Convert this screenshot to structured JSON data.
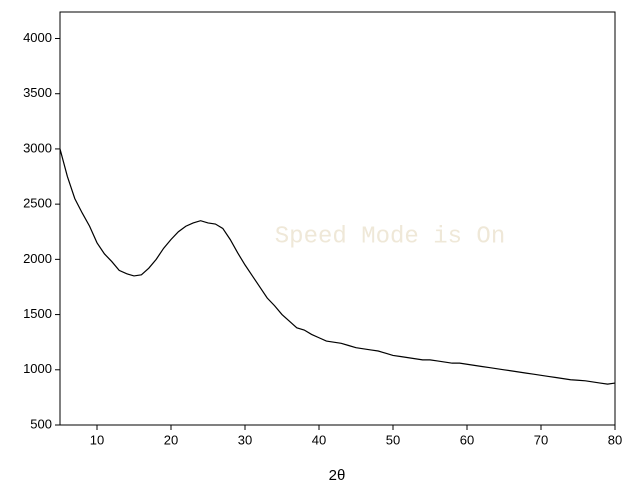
{
  "chart_data": {
    "type": "line",
    "x_label": "2θ",
    "annotation": "Speed Mode is On",
    "x": [
      5,
      6,
      7,
      8,
      9,
      10,
      11,
      12,
      13,
      14,
      15,
      16,
      17,
      18,
      19,
      20,
      21,
      22,
      23,
      24,
      25,
      26,
      27,
      28,
      29,
      30,
      31,
      32,
      33,
      34,
      35,
      36,
      37,
      38,
      39,
      40,
      41,
      42,
      43,
      44,
      45,
      46,
      47,
      48,
      49,
      50,
      51,
      52,
      53,
      54,
      55,
      56,
      57,
      58,
      59,
      60,
      61,
      62,
      63,
      64,
      65,
      66,
      67,
      68,
      69,
      70,
      71,
      72,
      73,
      74,
      75,
      76,
      77,
      78,
      79,
      80
    ],
    "series": [
      {
        "color": "#000000",
        "values": [
          3000,
          2750,
          2550,
          2420,
          2300,
          2150,
          2050,
          1980,
          1900,
          1870,
          1850,
          1860,
          1920,
          2000,
          2100,
          2180,
          2250,
          2300,
          2330,
          2350,
          2330,
          2320,
          2280,
          2180,
          2060,
          1950,
          1850,
          1750,
          1650,
          1580,
          1500,
          1440,
          1380,
          1360,
          1320,
          1290,
          1260,
          1250,
          1240,
          1220,
          1200,
          1190,
          1180,
          1170,
          1150,
          1130,
          1120,
          1110,
          1100,
          1090,
          1090,
          1080,
          1070,
          1060,
          1060,
          1050,
          1040,
          1030,
          1020,
          1010,
          1000,
          990,
          980,
          970,
          960,
          950,
          940,
          930,
          920,
          910,
          905,
          900,
          890,
          880,
          870,
          880
        ]
      }
    ],
    "xlim": [
      5,
      80
    ],
    "xticks": [
      10,
      20,
      30,
      40,
      50,
      60,
      70,
      80
    ],
    "ylim": [
      500,
      4240
    ],
    "yticks": [
      500,
      1000,
      1500,
      2000,
      2500,
      3000,
      3500,
      4000
    ]
  }
}
